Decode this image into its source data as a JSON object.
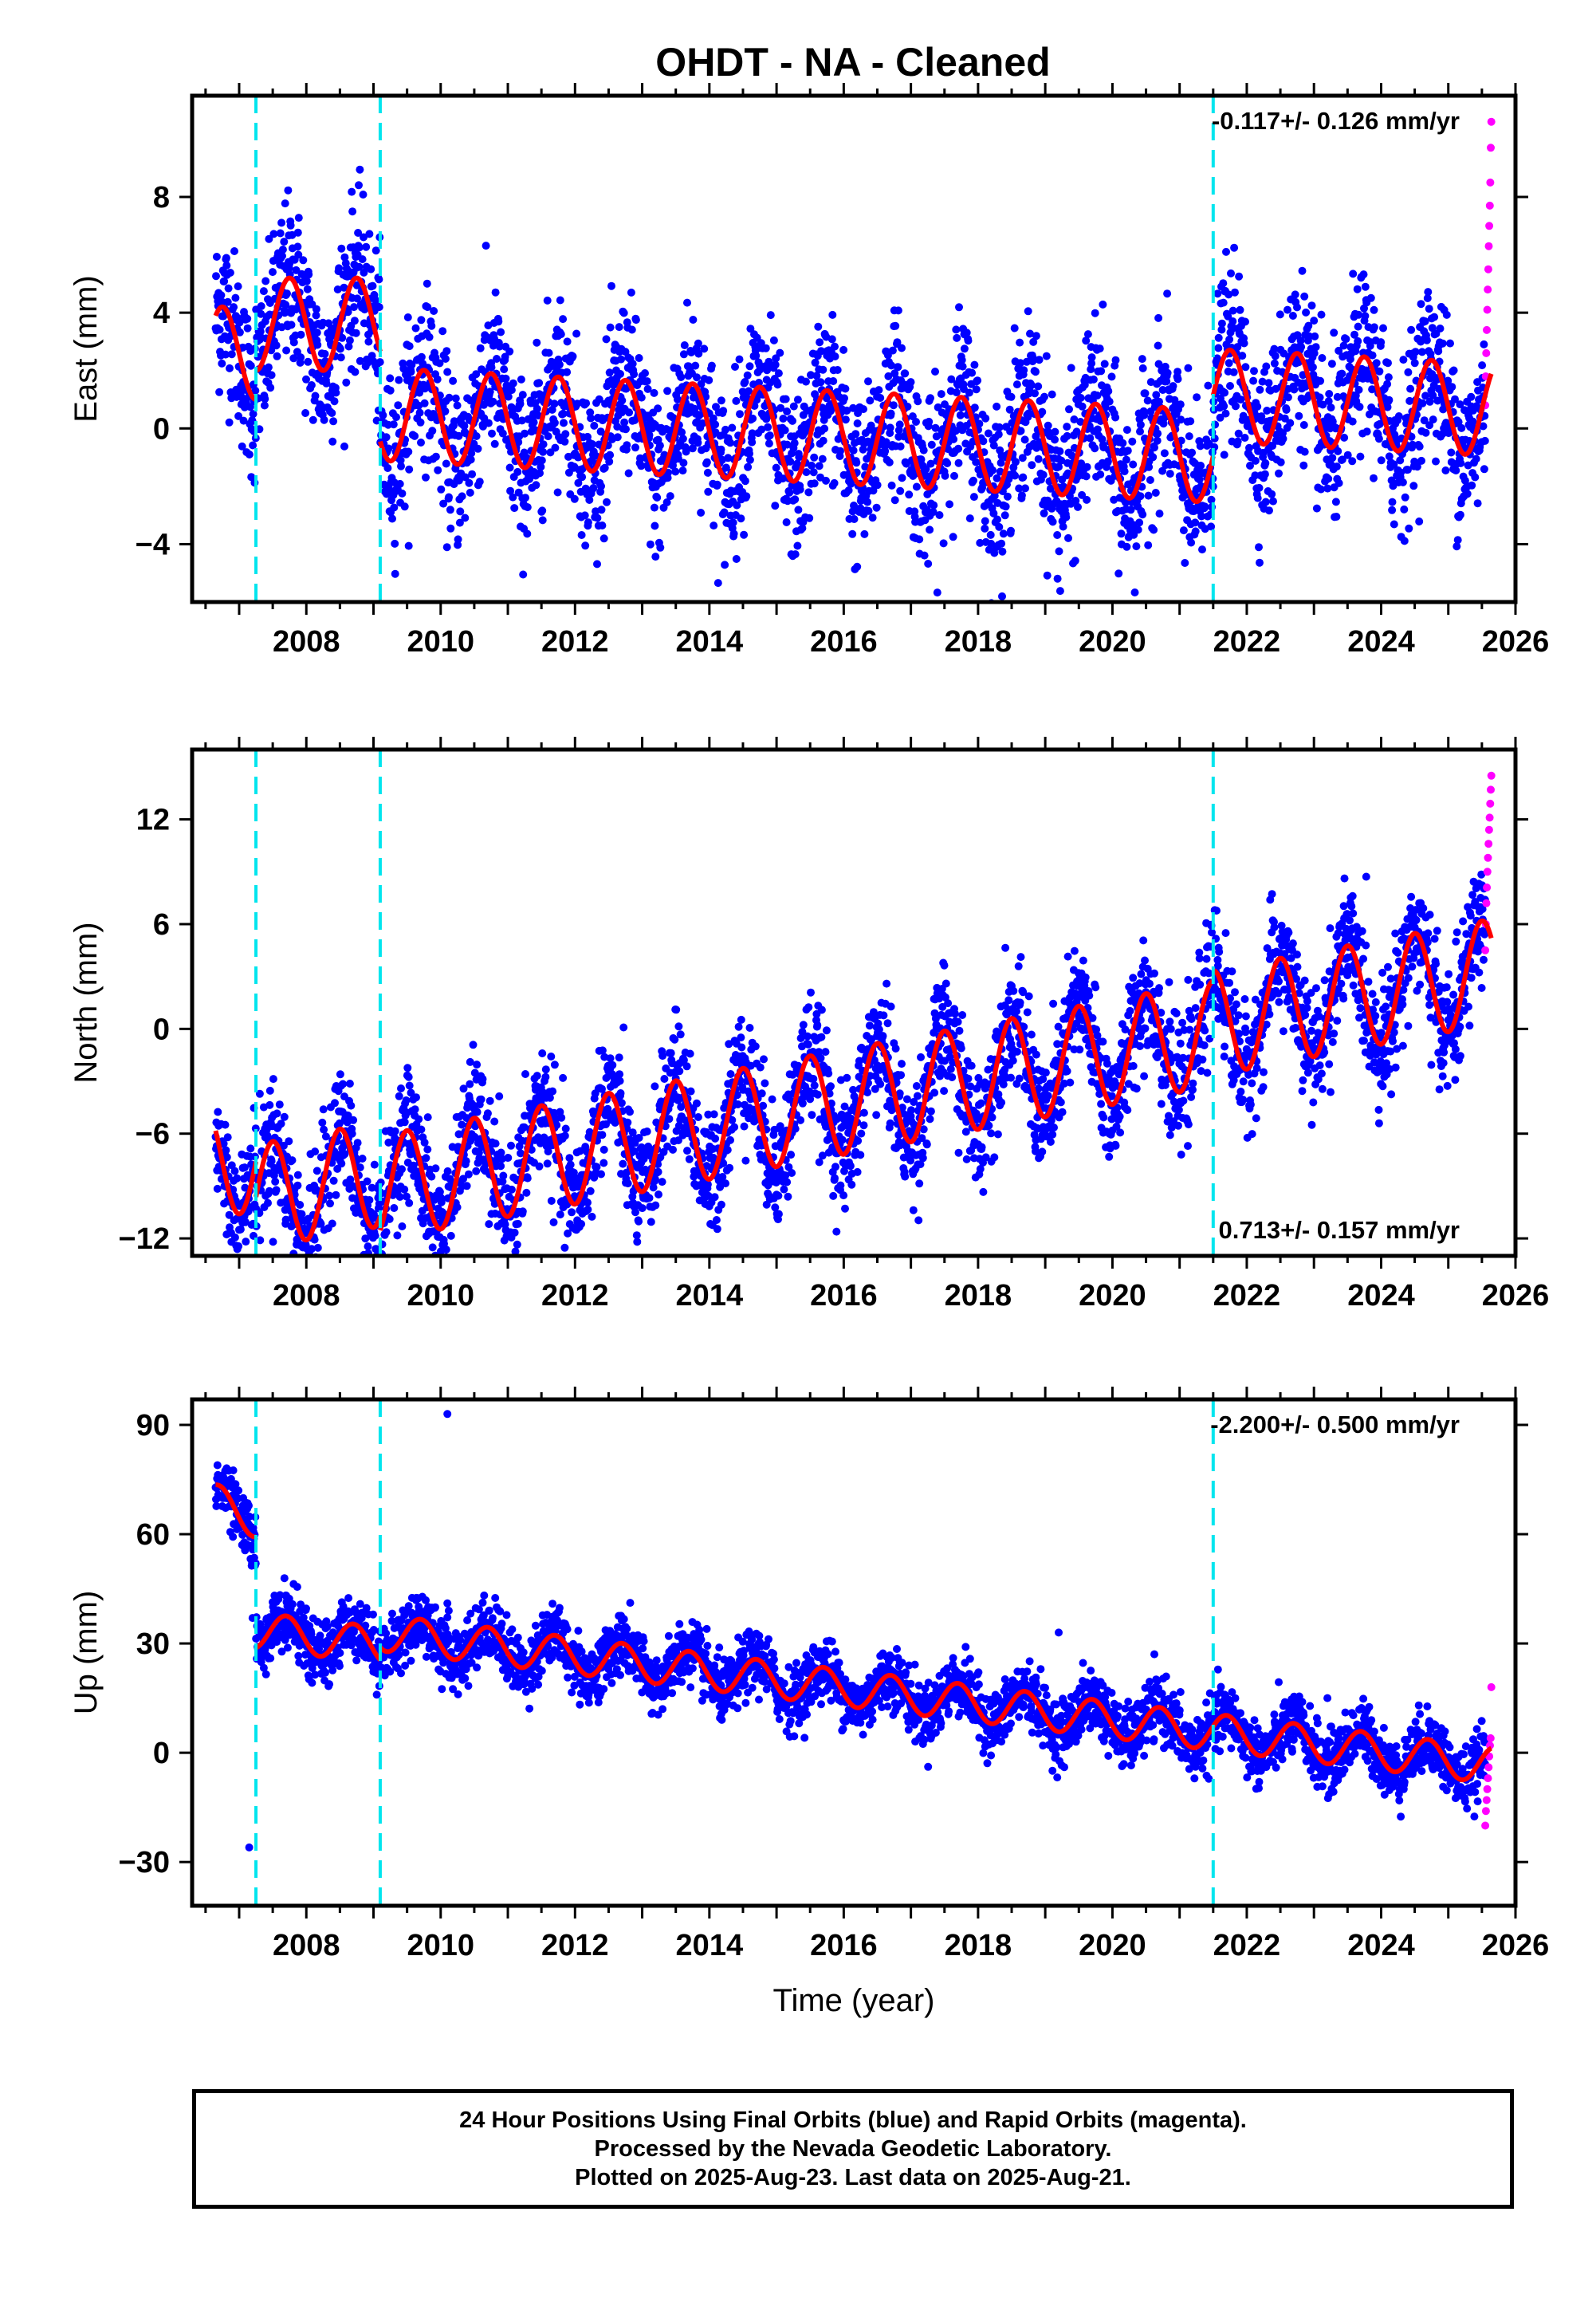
{
  "title": "OHDT  - NA - Cleaned",
  "footer": {
    "line1": "24 Hour Positions Using Final Orbits (blue) and Rapid Orbits (magenta).",
    "line2": "Processed by the Nevada Geodetic Laboratory.",
    "line3": "Plotted on 2025-Aug-23. Last data on 2025-Aug-21."
  },
  "colors": {
    "final_orbits": "#0000ff",
    "rapid_orbits": "#ff00ff",
    "model": "#ff0000",
    "breaks": "#00e5ee",
    "frame": "#000000"
  },
  "chart_data": [
    {
      "type": "scatter",
      "ylabel": "East (mm)",
      "xlabel": "",
      "rate_label": "-0.117+/- 0.126 mm/yr",
      "rate_position": "top-right",
      "xlim": [
        2006.3,
        2026.0
      ],
      "ylim": [
        -6,
        11.5
      ],
      "x_ticks": [
        2008,
        2010,
        2012,
        2014,
        2016,
        2018,
        2020,
        2022,
        2024,
        2026
      ],
      "y_ticks": [
        -4,
        0,
        4,
        8
      ],
      "grid": false,
      "breaks": [
        2007.25,
        2009.1,
        2021.5
      ],
      "data_span": [
        2006.65,
        2025.55
      ],
      "rapid_span": [
        2025.55,
        2025.64
      ],
      "scatter_sigma": 1.4,
      "series": [
        {
          "role": "model",
          "segments": [
            {
              "start": 2006.65,
              "end": 2007.25,
              "offset": 2.6,
              "rate": 0,
              "amplitude": 1.6,
              "phase": 2007.75
            },
            {
              "start": 2007.25,
              "end": 2009.1,
              "offset": 3.6,
              "rate": 0,
              "amplitude": 1.6,
              "phase": 2007.75
            },
            {
              "start": 2009.1,
              "end": 2021.5,
              "offset": -0.2,
              "rate": -0.117,
              "amplitude": 1.6,
              "phase": 2007.75
            },
            {
              "start": 2021.5,
              "end": 2025.64,
              "offset": 1.9,
              "rate": -0.117,
              "amplitude": 1.6,
              "phase": 2007.75
            }
          ]
        }
      ],
      "rapid_values": [
        0.8,
        1.8,
        2.6,
        3.4,
        4.1,
        4.8,
        5.5,
        6.3,
        7.0,
        7.7,
        8.5,
        9.7,
        10.6
      ]
    },
    {
      "type": "scatter",
      "ylabel": "North (mm)",
      "xlabel": "",
      "rate_label": "0.713+/- 0.157 mm/yr",
      "rate_position": "bottom-right",
      "xlim": [
        2006.3,
        2026.0
      ],
      "ylim": [
        -13,
        16
      ],
      "x_ticks": [
        2008,
        2010,
        2012,
        2014,
        2016,
        2018,
        2020,
        2022,
        2024,
        2026
      ],
      "y_ticks": [
        -12,
        -6,
        0,
        6,
        12
      ],
      "grid": false,
      "breaks": [
        2007.25,
        2009.1,
        2021.5
      ],
      "data_span": [
        2006.65,
        2025.55
      ],
      "rapid_span": [
        2025.55,
        2025.64
      ],
      "scatter_sigma": 1.7,
      "series": [
        {
          "role": "model",
          "segments": [
            {
              "start": 2006.65,
              "end": 2007.25,
              "offset": -7.6,
              "rate": 0,
              "amplitude": 3.0,
              "phase": 2007.5
            },
            {
              "start": 2007.25,
              "end": 2009.1,
              "offset": -4.1,
              "rate": 0.713,
              "amplitude": 3.0,
              "phase": 2007.5
            },
            {
              "start": 2009.1,
              "end": 2021.5,
              "offset": -4.9,
              "rate": 0.713,
              "amplitude": 3.0,
              "phase": 2007.5
            },
            {
              "start": 2021.5,
              "end": 2025.64,
              "offset": -4.3,
              "rate": 0.713,
              "amplitude": 3.0,
              "phase": 2007.5
            }
          ]
        }
      ],
      "rapid_values": [
        4.5,
        6.0,
        7.2,
        8.1,
        9.0,
        9.8,
        10.6,
        11.4,
        12.1,
        12.9,
        13.7,
        14.5
      ]
    },
    {
      "type": "scatter",
      "ylabel": "Up (mm)",
      "xlabel": "Time (year)",
      "rate_label": "-2.200+/- 0.500 mm/yr",
      "rate_position": "top-right",
      "xlim": [
        2006.3,
        2026.0
      ],
      "ylim": [
        -42,
        97
      ],
      "x_ticks": [
        2008,
        2010,
        2012,
        2014,
        2016,
        2018,
        2020,
        2022,
        2024,
        2026
      ],
      "y_ticks": [
        -30,
        0,
        30,
        60,
        90
      ],
      "grid": false,
      "breaks": [
        2007.25,
        2009.1,
        2021.5
      ],
      "data_span": [
        2006.65,
        2025.55
      ],
      "rapid_span": [
        2025.55,
        2025.64
      ],
      "scatter_sigma": 4.2,
      "series": [
        {
          "role": "model",
          "segments": [
            {
              "start": 2006.65,
              "end": 2007.25,
              "offset": 2.0,
              "rate": -8.0,
              "amplitude": 5.0,
              "phase": 2007.7
            },
            {
              "start": 2007.25,
              "end": 2009.1,
              "offset": 16.5,
              "rate": -2.2,
              "amplitude": 5.0,
              "phase": 2007.7
            },
            {
              "start": 2009.1,
              "end": 2021.5,
              "offset": 20.0,
              "rate": -2.2,
              "amplitude": 5.0,
              "phase": 2007.7
            },
            {
              "start": 2021.5,
              "end": 2025.64,
              "offset": 20.0,
              "rate": -2.2,
              "amplitude": 5.0,
              "phase": 2007.7
            }
          ]
        }
      ],
      "outliers": [
        [
          2007.2,
          37
        ],
        [
          2007.15,
          -26
        ],
        [
          2010.1,
          93
        ],
        [
          2010.1,
          41
        ],
        [
          2010.12,
          39
        ],
        [
          2013.6,
          31
        ],
        [
          2019.2,
          33
        ],
        [
          2023.2,
          15
        ]
      ],
      "rapid_values": [
        -20,
        -16,
        -13,
        -10,
        -7,
        -4,
        -1,
        2,
        4,
        18
      ]
    }
  ]
}
